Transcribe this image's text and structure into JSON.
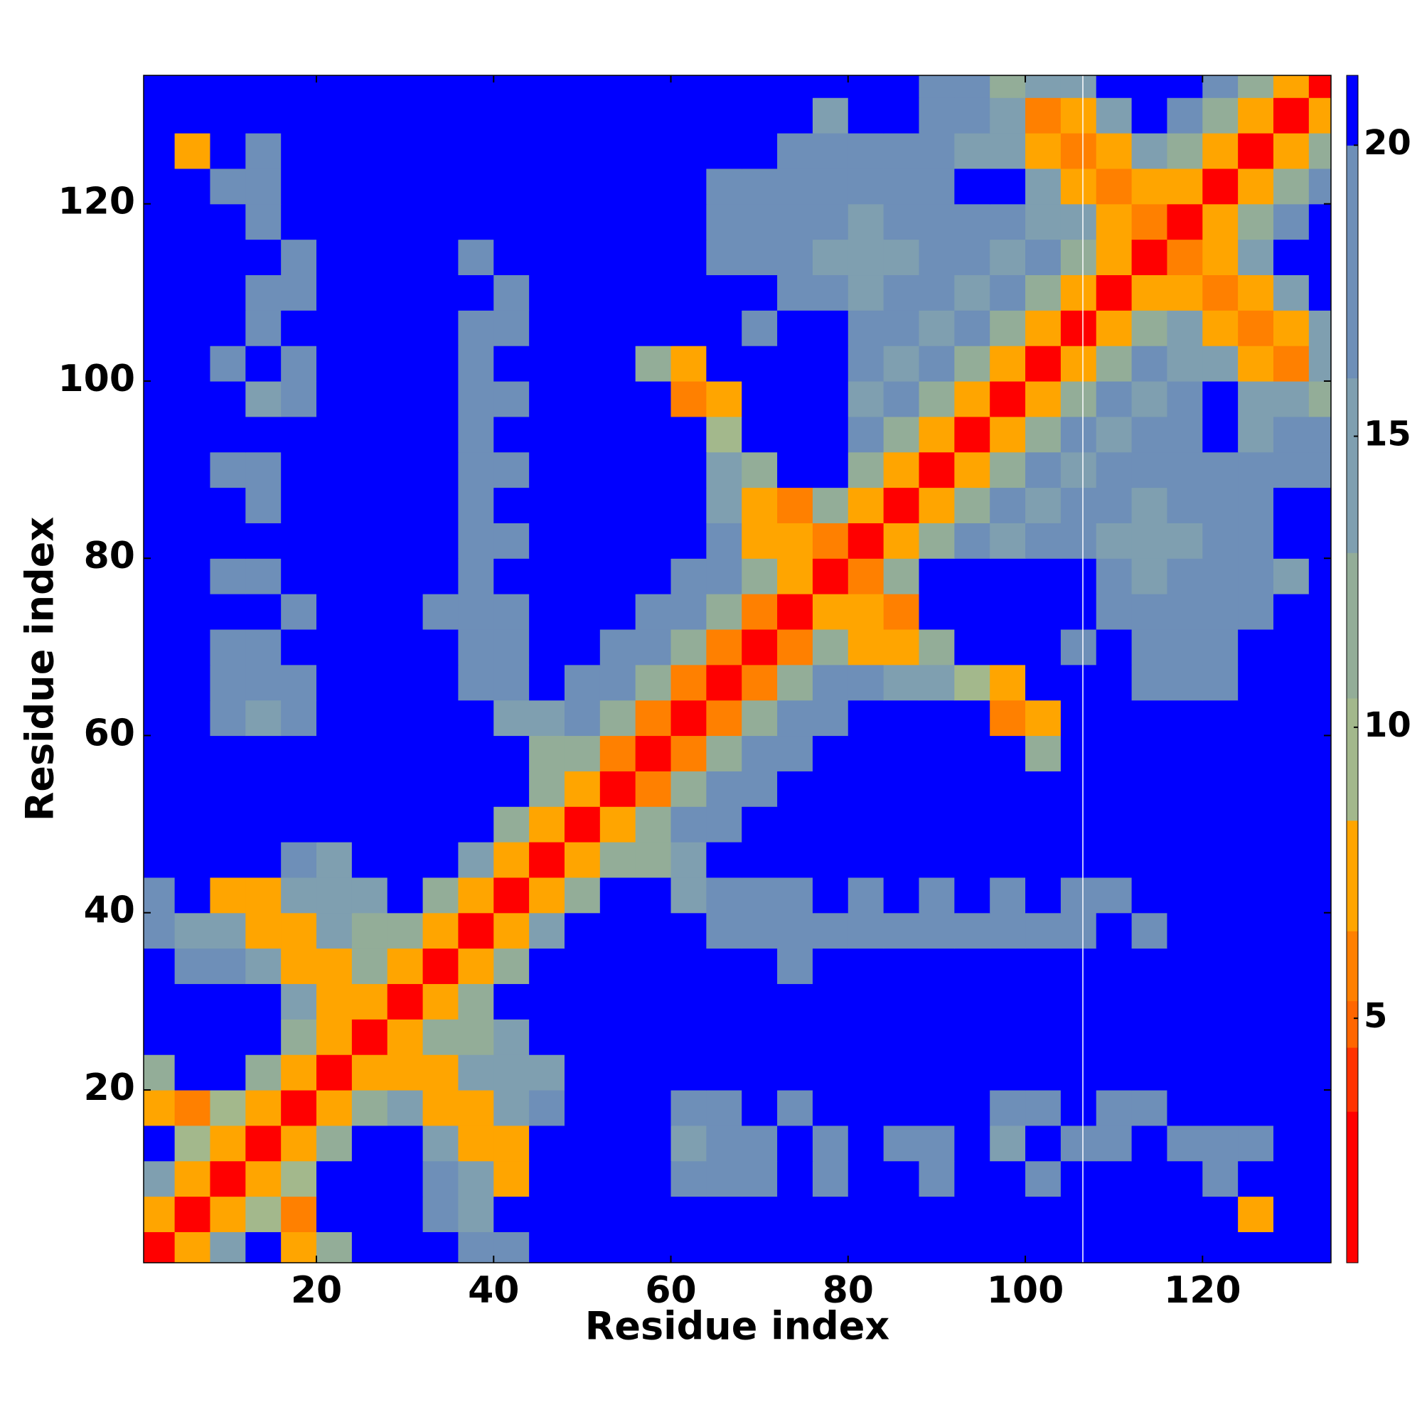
{
  "chart_data": {
    "type": "heatmap",
    "x_label": "Residue index",
    "y_label": "Residue index",
    "x": [
      2,
      6,
      10,
      14,
      18,
      22,
      26,
      30,
      34,
      38,
      42,
      46,
      50,
      54,
      58,
      62,
      66,
      70,
      74,
      78,
      82,
      86,
      90,
      94,
      98,
      102,
      106,
      110,
      114,
      118,
      122,
      126,
      130,
      134
    ],
    "y": [
      2,
      6,
      10,
      14,
      18,
      22,
      26,
      30,
      34,
      38,
      42,
      46,
      50,
      54,
      58,
      62,
      66,
      70,
      74,
      78,
      82,
      86,
      90,
      94,
      98,
      102,
      106,
      110,
      114,
      118,
      122,
      126,
      130,
      134
    ],
    "xlim": [
      0.5,
      134.5
    ],
    "ylim": [
      0.5,
      134.5
    ],
    "xticks": [
      20,
      40,
      60,
      80,
      100,
      120
    ],
    "yticks": [
      20,
      40,
      60,
      80,
      100,
      120
    ],
    "colorbar_lim": [
      0.8,
      21.2
    ],
    "colorbar_ticks": [
      5,
      10,
      15,
      20
    ],
    "colorscale": [
      [
        3.4,
        "#ff0000"
      ],
      [
        4.5,
        "#ff3300"
      ],
      [
        5.3,
        "#ff6600"
      ],
      [
        6.5,
        "#ff8000"
      ],
      [
        8.4,
        "#ffa500"
      ],
      [
        10.5,
        "#a3b88c"
      ],
      [
        13,
        "#93ad98"
      ],
      [
        16,
        "#7f9fb0"
      ],
      [
        20,
        "#6e8fb8"
      ],
      [
        22,
        "#0000ff"
      ]
    ],
    "z": [
      [
        2,
        8,
        16,
        21,
        7,
        12,
        21,
        21,
        21,
        19,
        18,
        21,
        21,
        21,
        21,
        21,
        21,
        21,
        21,
        21,
        21,
        21,
        21,
        21,
        21,
        21,
        21,
        21,
        21,
        21,
        21,
        21,
        21,
        21
      ],
      [
        8,
        2,
        8,
        9,
        6,
        21,
        21,
        21,
        17,
        16,
        21,
        21,
        21,
        21,
        21,
        21,
        21,
        21,
        21,
        21,
        21,
        21,
        21,
        21,
        21,
        21,
        21,
        21,
        21,
        21,
        21,
        7,
        21,
        21
      ],
      [
        16,
        8,
        2,
        8,
        10,
        21,
        21,
        21,
        17,
        14,
        8,
        21,
        21,
        21,
        21,
        19,
        19,
        18,
        21,
        17,
        21,
        21,
        19,
        21,
        21,
        19,
        21,
        21,
        21,
        21,
        18,
        21,
        21,
        21
      ],
      [
        21,
        9,
        8,
        2,
        8,
        12,
        21,
        21,
        14,
        7,
        8,
        21,
        21,
        21,
        21,
        16,
        17,
        18,
        21,
        18,
        21,
        19,
        18,
        21,
        16,
        21,
        18,
        18,
        21,
        19,
        19,
        18,
        21,
        21
      ],
      [
        7,
        6,
        10,
        8,
        2,
        8,
        12,
        14,
        7,
        8,
        14,
        17,
        21,
        21,
        21,
        18,
        19,
        21,
        19,
        21,
        21,
        21,
        21,
        21,
        19,
        18,
        21,
        19,
        19,
        21,
        21,
        21,
        21,
        21
      ],
      [
        12,
        21,
        21,
        12,
        8,
        2,
        8,
        7,
        8,
        14,
        15,
        16,
        21,
        21,
        21,
        21,
        21,
        21,
        21,
        21,
        21,
        21,
        21,
        21,
        21,
        21,
        21,
        21,
        21,
        21,
        21,
        21,
        21,
        21
      ],
      [
        21,
        21,
        21,
        21,
        12,
        8,
        2,
        8,
        12,
        13,
        16,
        21,
        21,
        21,
        21,
        21,
        21,
        21,
        21,
        21,
        21,
        21,
        21,
        21,
        21,
        21,
        21,
        21,
        21,
        21,
        21,
        21,
        21,
        21
      ],
      [
        21,
        21,
        21,
        21,
        14,
        7,
        8,
        2,
        8,
        12,
        21,
        21,
        21,
        21,
        21,
        21,
        21,
        21,
        21,
        21,
        21,
        21,
        21,
        21,
        21,
        21,
        21,
        21,
        21,
        21,
        21,
        21,
        21,
        21
      ],
      [
        21,
        17,
        17,
        14,
        7,
        8,
        12,
        8,
        2,
        8,
        12,
        21,
        21,
        21,
        21,
        21,
        21,
        21,
        19,
        21,
        21,
        21,
        21,
        21,
        21,
        21,
        21,
        21,
        21,
        21,
        21,
        21,
        21,
        21
      ],
      [
        19,
        16,
        14,
        7,
        8,
        14,
        13,
        12,
        8,
        2,
        8,
        15,
        21,
        21,
        21,
        21,
        18,
        17,
        19,
        18,
        18,
        19,
        19,
        19,
        19,
        18,
        18,
        21,
        19,
        21,
        21,
        21,
        21,
        21
      ],
      [
        18,
        21,
        8,
        8,
        14,
        15,
        16,
        21,
        12,
        8,
        2,
        8,
        13,
        21,
        21,
        16,
        18,
        17,
        19,
        21,
        19,
        21,
        18,
        21,
        19,
        21,
        19,
        19,
        21,
        21,
        21,
        21,
        21,
        21
      ],
      [
        21,
        21,
        21,
        21,
        17,
        16,
        21,
        21,
        21,
        15,
        8,
        2,
        8,
        13,
        13,
        14,
        21,
        21,
        21,
        21,
        21,
        21,
        21,
        21,
        21,
        21,
        21,
        21,
        21,
        21,
        21,
        21,
        21,
        21
      ],
      [
        21,
        21,
        21,
        21,
        21,
        21,
        21,
        21,
        21,
        21,
        13,
        8,
        2,
        8,
        13,
        17,
        19,
        21,
        21,
        21,
        21,
        21,
        21,
        21,
        21,
        21,
        21,
        21,
        21,
        21,
        21,
        21,
        21,
        21
      ],
      [
        21,
        21,
        21,
        21,
        21,
        21,
        21,
        21,
        21,
        21,
        21,
        13,
        8,
        2,
        6,
        13,
        17,
        19,
        21,
        21,
        21,
        21,
        21,
        21,
        21,
        21,
        21,
        21,
        21,
        21,
        21,
        21,
        21,
        21
      ],
      [
        21,
        21,
        21,
        21,
        21,
        21,
        21,
        21,
        21,
        21,
        21,
        13,
        13,
        6,
        2,
        6,
        13,
        17,
        19,
        21,
        21,
        21,
        21,
        21,
        21,
        12,
        21,
        21,
        21,
        21,
        21,
        21,
        21,
        21
      ],
      [
        21,
        21,
        19,
        16,
        18,
        21,
        21,
        21,
        21,
        21,
        16,
        14,
        17,
        13,
        6,
        2,
        6,
        13,
        17,
        19,
        21,
        21,
        21,
        21,
        6,
        7,
        21,
        21,
        21,
        21,
        21,
        21,
        21,
        21
      ],
      [
        21,
        21,
        19,
        17,
        19,
        21,
        21,
        21,
        21,
        18,
        18,
        21,
        19,
        17,
        13,
        6,
        2,
        6,
        13,
        17,
        19,
        15,
        16,
        10,
        8,
        21,
        21,
        21,
        19,
        18,
        18,
        21,
        21,
        21
      ],
      [
        21,
        21,
        18,
        18,
        21,
        21,
        21,
        21,
        21,
        17,
        17,
        21,
        21,
        19,
        17,
        13,
        6,
        2,
        6,
        13,
        8,
        7,
        12,
        21,
        21,
        21,
        19,
        21,
        18,
        17,
        19,
        21,
        21,
        21
      ],
      [
        21,
        21,
        21,
        21,
        19,
        21,
        21,
        21,
        19,
        19,
        19,
        21,
        21,
        21,
        19,
        17,
        13,
        6,
        2,
        8,
        7,
        6,
        21,
        21,
        21,
        21,
        21,
        18,
        17,
        18,
        19,
        17,
        21,
        21
      ],
      [
        21,
        21,
        17,
        18,
        21,
        21,
        21,
        21,
        21,
        18,
        21,
        21,
        21,
        21,
        21,
        19,
        17,
        13,
        8,
        2,
        6,
        13,
        21,
        21,
        21,
        21,
        21,
        17,
        16,
        17,
        18,
        18,
        16,
        21
      ],
      [
        21,
        21,
        21,
        21,
        21,
        21,
        21,
        21,
        21,
        18,
        19,
        21,
        21,
        21,
        21,
        21,
        19,
        8,
        7,
        6,
        2,
        8,
        13,
        18,
        16,
        18,
        19,
        16,
        15,
        16,
        18,
        19,
        21,
        21
      ],
      [
        21,
        21,
        21,
        19,
        21,
        21,
        21,
        21,
        21,
        19,
        21,
        21,
        21,
        21,
        21,
        21,
        15,
        7,
        6,
        13,
        8,
        2,
        8,
        13,
        18,
        16,
        17,
        18,
        16,
        17,
        18,
        17,
        21,
        21
      ],
      [
        21,
        21,
        19,
        18,
        21,
        21,
        21,
        21,
        21,
        19,
        18,
        21,
        21,
        21,
        21,
        21,
        16,
        12,
        21,
        21,
        13,
        8,
        2,
        8,
        13,
        18,
        15,
        17,
        19,
        18,
        17,
        18,
        19,
        19
      ],
      [
        21,
        21,
        21,
        21,
        21,
        21,
        21,
        21,
        21,
        19,
        21,
        21,
        21,
        21,
        21,
        21,
        10,
        21,
        21,
        21,
        18,
        13,
        8,
        2,
        8,
        13,
        18,
        16,
        18,
        17,
        21,
        16,
        17,
        18
      ],
      [
        21,
        21,
        21,
        16,
        19,
        21,
        21,
        21,
        21,
        19,
        19,
        21,
        21,
        21,
        21,
        6,
        8,
        21,
        21,
        21,
        16,
        18,
        13,
        8,
        2,
        8,
        13,
        18,
        15,
        18,
        21,
        14,
        14,
        12
      ],
      [
        21,
        21,
        19,
        21,
        18,
        21,
        21,
        21,
        21,
        18,
        21,
        21,
        21,
        21,
        12,
        7,
        21,
        21,
        21,
        21,
        18,
        16,
        18,
        13,
        8,
        2,
        8,
        13,
        18,
        16,
        14,
        8,
        6,
        14
      ],
      [
        21,
        21,
        21,
        18,
        21,
        21,
        21,
        21,
        21,
        18,
        19,
        21,
        21,
        21,
        21,
        21,
        21,
        19,
        21,
        21,
        19,
        17,
        15,
        18,
        13,
        8,
        2,
        8,
        13,
        14,
        8,
        6,
        8,
        14
      ],
      [
        21,
        21,
        21,
        18,
        19,
        21,
        21,
        21,
        21,
        21,
        19,
        21,
        21,
        21,
        21,
        21,
        21,
        21,
        18,
        17,
        16,
        18,
        17,
        16,
        18,
        13,
        8,
        2,
        8,
        8,
        6,
        8,
        14,
        21
      ],
      [
        21,
        21,
        21,
        21,
        19,
        21,
        21,
        21,
        21,
        19,
        21,
        21,
        21,
        21,
        21,
        21,
        19,
        18,
        17,
        16,
        15,
        16,
        19,
        18,
        15,
        18,
        13,
        8,
        2,
        6,
        8,
        14,
        21,
        21
      ],
      [
        21,
        21,
        21,
        19,
        21,
        21,
        21,
        21,
        21,
        21,
        21,
        21,
        21,
        21,
        21,
        21,
        18,
        17,
        18,
        17,
        16,
        17,
        18,
        17,
        18,
        16,
        14,
        8,
        6,
        2,
        8,
        13,
        18,
        21
      ],
      [
        21,
        21,
        18,
        19,
        21,
        21,
        21,
        21,
        21,
        21,
        21,
        21,
        21,
        21,
        21,
        21,
        18,
        19,
        19,
        18,
        18,
        18,
        17,
        21,
        21,
        14,
        8,
        6,
        8,
        8,
        2,
        8,
        13,
        18
      ],
      [
        21,
        7,
        21,
        18,
        21,
        21,
        21,
        21,
        21,
        21,
        21,
        21,
        21,
        21,
        21,
        21,
        21,
        21,
        17,
        18,
        19,
        17,
        18,
        16,
        14,
        8,
        6,
        8,
        14,
        13,
        8,
        2,
        8,
        13
      ],
      [
        21,
        21,
        21,
        21,
        21,
        21,
        21,
        21,
        21,
        21,
        21,
        21,
        21,
        21,
        21,
        21,
        21,
        21,
        21,
        16,
        21,
        21,
        19,
        17,
        14,
        6,
        8,
        14,
        21,
        18,
        13,
        8,
        2,
        8
      ],
      [
        21,
        21,
        21,
        21,
        21,
        21,
        21,
        21,
        21,
        21,
        21,
        21,
        21,
        21,
        21,
        21,
        21,
        21,
        21,
        21,
        21,
        21,
        19,
        18,
        12,
        14,
        14,
        21,
        21,
        21,
        18,
        13,
        8,
        2
      ]
    ]
  }
}
